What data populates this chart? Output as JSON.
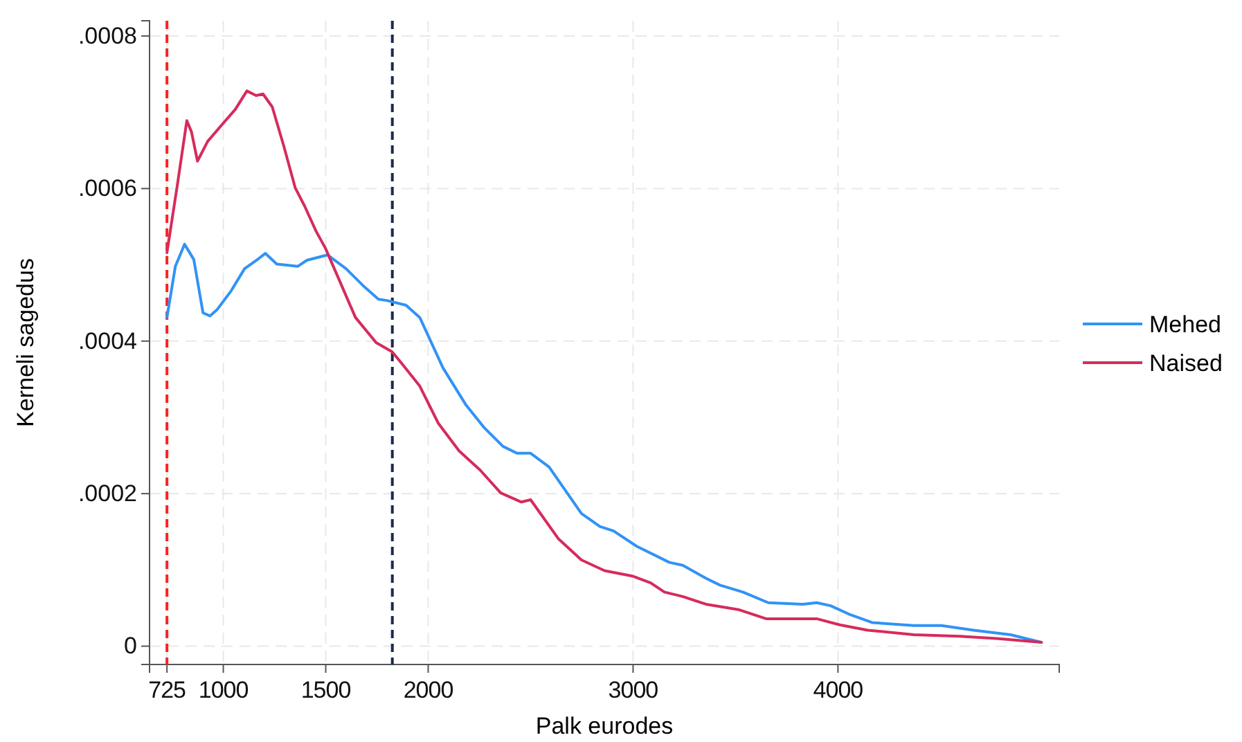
{
  "chart_data": {
    "type": "line",
    "xlabel": "Palk eurodes",
    "ylabel": "Kerneli sagedus",
    "xlim": [
      640,
      5080
    ],
    "ylim": [
      -2.4e-05,
      0.00082
    ],
    "xticks": [
      725,
      1000,
      1500,
      2000,
      3000,
      4000
    ],
    "yticks": [
      {
        "value": 0,
        "label": "0"
      },
      {
        "value": 0.0002,
        "label": ".0002"
      },
      {
        "value": 0.0004,
        "label": ".0004"
      },
      {
        "value": 0.0006,
        "label": ".0006"
      },
      {
        "value": 0.0008,
        "label": ".0008"
      }
    ],
    "grid": true,
    "legend": "right",
    "line_style": "solid",
    "marker": "none",
    "ref_lines": [
      {
        "axis": "x",
        "value": 725,
        "color": "#ff2020",
        "line_style": "dashed"
      },
      {
        "axis": "x",
        "value": 1825,
        "color": "#1a2a50",
        "line_style": "dashed"
      }
    ],
    "series": [
      {
        "name": "Mehed",
        "color": "#3193f5",
        "x": [
          725,
          766,
          811,
          856,
          901,
          935,
          969,
          1036,
          1104,
          1172,
          1205,
          1261,
          1363,
          1408,
          1509,
          1599,
          1689,
          1757,
          1802,
          1892,
          1959,
          2072,
          2185,
          2275,
          2365,
          2433,
          2500,
          2590,
          2748,
          2838,
          2905,
          3018,
          3176,
          3243,
          3356,
          3424,
          3536,
          3660,
          3829,
          3896,
          3964,
          4054,
          4167,
          4370,
          4505,
          4662,
          4842,
          4993
        ],
        "values": [
          0.000431,
          0.000498,
          0.000527,
          0.000507,
          0.000437,
          0.000433,
          0.000441,
          0.000465,
          0.000495,
          0.000508,
          0.000515,
          0.000501,
          0.000498,
          0.000506,
          0.000513,
          0.000495,
          0.000471,
          0.000455,
          0.000453,
          0.000447,
          0.000431,
          0.000365,
          0.000316,
          0.000286,
          0.000262,
          0.000253,
          0.000253,
          0.000235,
          0.000174,
          0.000157,
          0.000151,
          0.000131,
          0.00011,
          0.000106,
          8.9e-05,
          8e-05,
          7.1e-05,
          5.7e-05,
          5.5e-05,
          5.7e-05,
          5.3e-05,
          4.2e-05,
          3.1e-05,
          2.7e-05,
          2.7e-05,
          2.1e-05,
          1.5e-05,
          5e-06
        ]
      },
      {
        "name": "Naised",
        "color": "#d62b5c",
        "x": [
          725,
          777,
          822,
          845,
          874,
          924,
          991,
          1059,
          1115,
          1160,
          1194,
          1239,
          1295,
          1351,
          1397,
          1453,
          1498,
          1566,
          1645,
          1746,
          1824,
          1870,
          1959,
          2050,
          2151,
          2253,
          2354,
          2455,
          2500,
          2635,
          2748,
          2861,
          2996,
          3086,
          3153,
          3243,
          3356,
          3514,
          3649,
          3784,
          3896,
          4009,
          4145,
          4370,
          4595,
          4775,
          4993
        ],
        "values": [
          0.000516,
          0.000607,
          0.000689,
          0.000674,
          0.000636,
          0.000662,
          0.000683,
          0.000704,
          0.000728,
          0.000722,
          0.000724,
          0.000707,
          0.000656,
          0.000601,
          0.000577,
          0.000544,
          0.000522,
          0.00048,
          0.000431,
          0.000398,
          0.000386,
          0.000371,
          0.000341,
          0.000292,
          0.000256,
          0.000231,
          0.000201,
          0.000189,
          0.000192,
          0.000141,
          0.000113,
          9.9e-05,
          9.2e-05,
          8.3e-05,
          7.1e-05,
          6.5e-05,
          5.5e-05,
          4.8e-05,
          3.6e-05,
          3.6e-05,
          3.6e-05,
          2.8e-05,
          2.1e-05,
          1.5e-05,
          1.3e-05,
          1e-05,
          5e-06
        ]
      }
    ]
  }
}
